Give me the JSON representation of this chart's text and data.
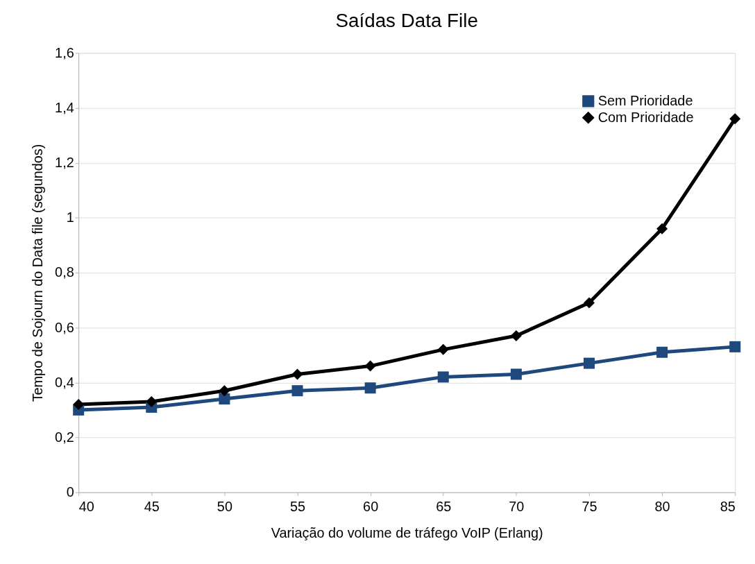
{
  "chart_data": {
    "type": "line",
    "title": "Saídas Data File",
    "xlabel": "Variação do volume de tráfego VoIP (Erlang)",
    "ylabel": "Tempo de Sojourn do Data file (segundos)",
    "x": [
      40,
      45,
      50,
      55,
      60,
      65,
      70,
      75,
      80,
      85
    ],
    "series": [
      {
        "name": "Sem Prioridade",
        "color": "#1f497d",
        "marker": "square",
        "values": [
          0.3,
          0.31,
          0.34,
          0.37,
          0.38,
          0.42,
          0.43,
          0.47,
          0.51,
          0.53
        ]
      },
      {
        "name": "Com Prioridade",
        "color": "#000000",
        "marker": "diamond",
        "values": [
          0.32,
          0.33,
          0.37,
          0.43,
          0.46,
          0.52,
          0.57,
          0.69,
          0.96,
          1.36
        ]
      }
    ],
    "xlim": [
      40,
      85
    ],
    "xticks": [
      40,
      45,
      50,
      55,
      60,
      65,
      70,
      75,
      80,
      85
    ],
    "ylim": [
      0,
      1.6
    ],
    "yticks": [
      0,
      {
        "value": 0.2,
        "label": "0,2"
      },
      {
        "value": 0.4,
        "label": "0,4"
      },
      {
        "value": 0.6,
        "label": "0,6"
      },
      {
        "value": 0.8,
        "label": "0,8"
      },
      1,
      {
        "value": 1.2,
        "label": "1,2"
      },
      {
        "value": 1.4,
        "label": "1,4"
      },
      {
        "value": 1.6,
        "label": "1,6"
      }
    ],
    "grid": "y",
    "legend": "top right",
    "line_style": "solid"
  }
}
